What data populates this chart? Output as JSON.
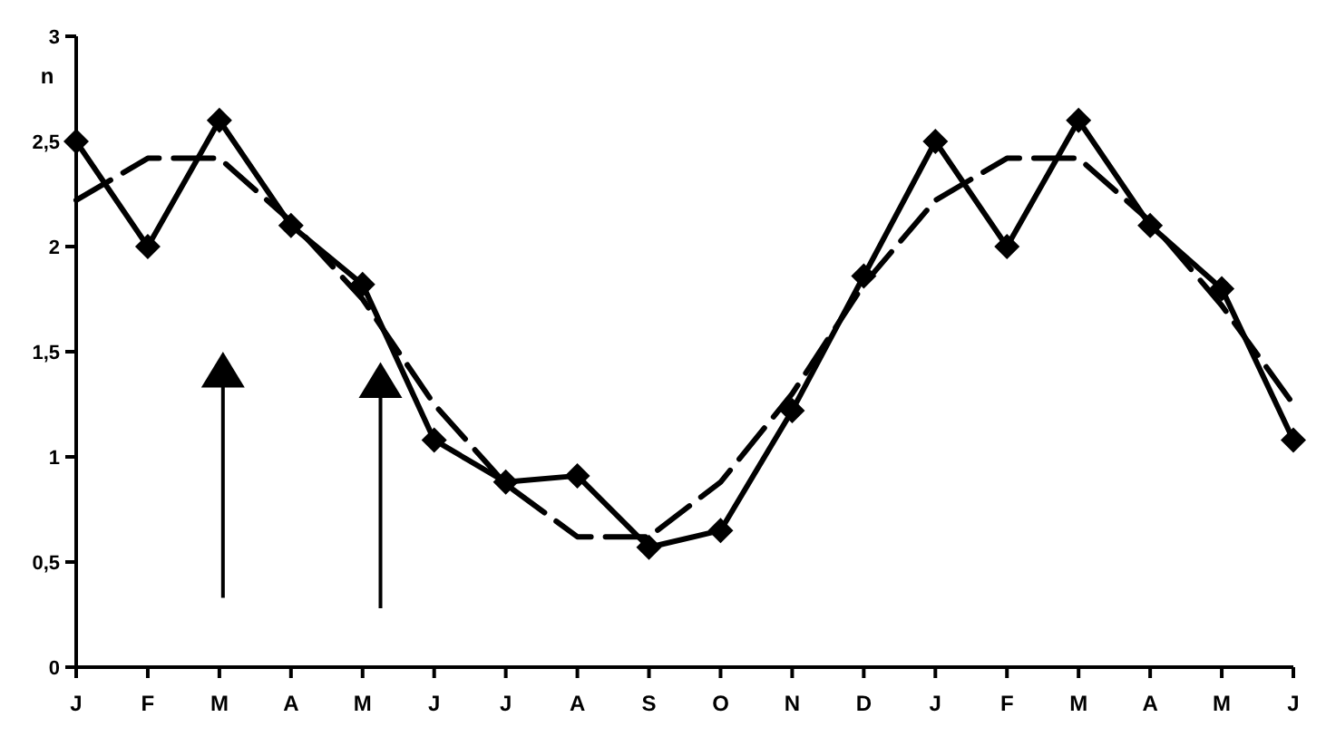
{
  "chart_data": {
    "type": "line",
    "ylabel": "n",
    "categories": [
      "J",
      "F",
      "M",
      "A",
      "M",
      "J",
      "J",
      "A",
      "S",
      "O",
      "N",
      "D",
      "J",
      "F",
      "M",
      "A",
      "M",
      "J"
    ],
    "ylim": [
      0,
      3
    ],
    "yticks": [
      0,
      {
        "value": 0.5,
        "label": "0,5"
      },
      1,
      {
        "value": 1.5,
        "label": "1,5"
      },
      2,
      {
        "value": 2.5,
        "label": "2,5"
      },
      3
    ],
    "grid": false,
    "series": [
      {
        "color": "#000000",
        "marker": "diamond",
        "line_style": "solid",
        "values": [
          2.5,
          2.0,
          2.6,
          2.1,
          1.82,
          1.08,
          0.88,
          0.91,
          0.57,
          0.65,
          1.22,
          1.86,
          2.5,
          2.0,
          2.6,
          2.1,
          1.8,
          1.08
        ]
      },
      {
        "color": "#000000",
        "marker": "none",
        "line_style": "dashed",
        "values": [
          2.22,
          2.42,
          2.42,
          2.12,
          1.75,
          1.25,
          0.87,
          0.62,
          0.62,
          0.88,
          1.3,
          1.82,
          2.22,
          2.42,
          2.42,
          2.12,
          1.72,
          1.25
        ]
      }
    ]
  }
}
